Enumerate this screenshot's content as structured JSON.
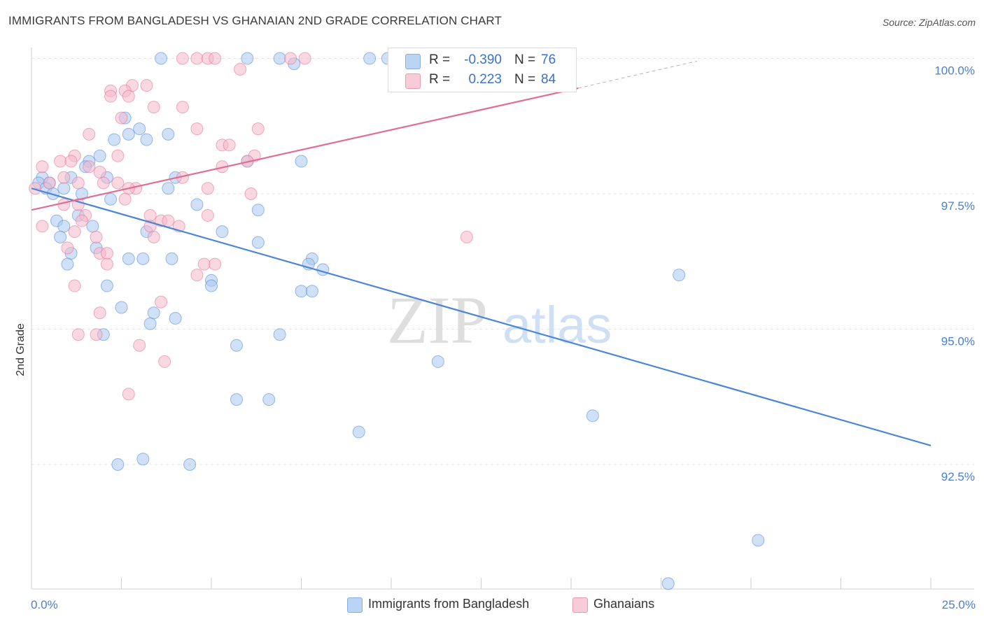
{
  "title": "IMMIGRANTS FROM BANGLADESH VS GHANAIAN 2ND GRADE CORRELATION CHART",
  "source": "Source: ZipAtlas.com",
  "watermark": {
    "zip": "ZIP",
    "atlas": "atlas"
  },
  "legend": {
    "rows": [
      {
        "r_label": "R =",
        "r_value": "-0.390",
        "n_label": "N =",
        "n_value": "76",
        "color": "#a9c8f0"
      },
      {
        "r_label": "R =",
        "r_value": "0.223",
        "n_label": "N =",
        "n_value": "84",
        "color": "#f5b8cb"
      }
    ]
  },
  "bottom_legend": [
    {
      "label": "Immigrants from Bangladesh",
      "color": "#a9c8f0"
    },
    {
      "label": "Ghanaians",
      "color": "#f5b8cb"
    }
  ],
  "chart_data": {
    "type": "scatter",
    "title": "IMMIGRANTS FROM BANGLADESH VS GHANAIAN 2ND GRADE CORRELATION CHART",
    "xlabel": "",
    "ylabel": "2nd Grade",
    "xlim": [
      0,
      25
    ],
    "ylim": [
      90.2,
      100.2
    ],
    "x_tick_labels": [
      "0.0%",
      "25.0%"
    ],
    "y_ticks": [
      92.5,
      95.0,
      97.5,
      100.0
    ],
    "y_tick_labels": [
      "92.5%",
      "95.0%",
      "97.5%",
      "100.0%"
    ],
    "grid": true,
    "legend_position": "top-center",
    "series": [
      {
        "name": "Immigrants from Bangladesh",
        "color": "#4a86d8",
        "fill": "#a9c8f0",
        "trend": {
          "x": [
            0.0,
            25.0
          ],
          "y": [
            97.6,
            92.85
          ]
        },
        "points": [
          [
            3.6,
            100.0
          ],
          [
            6.0,
            100.0
          ],
          [
            6.9,
            100.0
          ],
          [
            9.4,
            100.0
          ],
          [
            9.9,
            100.0
          ],
          [
            7.3,
            99.9
          ],
          [
            2.6,
            98.9
          ],
          [
            2.7,
            98.6
          ],
          [
            3.0,
            98.7
          ],
          [
            3.8,
            98.6
          ],
          [
            2.3,
            98.5
          ],
          [
            3.2,
            98.5
          ],
          [
            1.9,
            98.2
          ],
          [
            1.6,
            98.1
          ],
          [
            1.5,
            98.0
          ],
          [
            6.0,
            98.1
          ],
          [
            7.5,
            98.1
          ],
          [
            4.0,
            97.8
          ],
          [
            2.1,
            97.8
          ],
          [
            0.3,
            97.8
          ],
          [
            0.5,
            97.7
          ],
          [
            1.1,
            97.8
          ],
          [
            0.2,
            97.7
          ],
          [
            0.9,
            97.6
          ],
          [
            0.4,
            97.6
          ],
          [
            0.6,
            97.5
          ],
          [
            3.8,
            97.6
          ],
          [
            1.4,
            97.5
          ],
          [
            2.2,
            97.4
          ],
          [
            4.6,
            97.3
          ],
          [
            6.3,
            97.2
          ],
          [
            1.3,
            97.1
          ],
          [
            0.7,
            97.0
          ],
          [
            0.9,
            96.9
          ],
          [
            1.7,
            96.9
          ],
          [
            3.2,
            96.8
          ],
          [
            5.3,
            96.8
          ],
          [
            0.8,
            96.7
          ],
          [
            6.3,
            96.6
          ],
          [
            1.8,
            96.5
          ],
          [
            1.1,
            96.4
          ],
          [
            2.7,
            96.3
          ],
          [
            3.1,
            96.3
          ],
          [
            3.9,
            96.3
          ],
          [
            7.8,
            96.3
          ],
          [
            7.7,
            96.2
          ],
          [
            1.0,
            96.2
          ],
          [
            8.1,
            96.1
          ],
          [
            18.0,
            96.0
          ],
          [
            5.0,
            95.9
          ],
          [
            5.0,
            95.8
          ],
          [
            2.1,
            95.8
          ],
          [
            7.5,
            95.7
          ],
          [
            7.8,
            95.7
          ],
          [
            2.5,
            95.4
          ],
          [
            3.4,
            95.3
          ],
          [
            4.0,
            95.2
          ],
          [
            3.3,
            95.1
          ],
          [
            2.0,
            94.9
          ],
          [
            6.9,
            94.9
          ],
          [
            5.7,
            94.7
          ],
          [
            11.3,
            94.4
          ],
          [
            5.7,
            93.7
          ],
          [
            6.6,
            93.7
          ],
          [
            15.6,
            93.4
          ],
          [
            9.1,
            93.1
          ],
          [
            2.4,
            92.5
          ],
          [
            3.1,
            92.6
          ],
          [
            4.4,
            92.5
          ],
          [
            20.2,
            91.1
          ],
          [
            17.7,
            90.3
          ]
        ]
      },
      {
        "name": "Ghanaians",
        "color": "#e36d92",
        "fill": "#f5b8cb",
        "trend": {
          "x": [
            0.0,
            15.2
          ],
          "y": [
            97.2,
            99.45
          ]
        },
        "trend_dashed": {
          "x": [
            15.2,
            18.5
          ],
          "y": [
            99.45,
            99.95
          ]
        },
        "points": [
          [
            4.2,
            100.0
          ],
          [
            4.6,
            100.0
          ],
          [
            4.9,
            100.0
          ],
          [
            5.1,
            100.0
          ],
          [
            7.2,
            100.0
          ],
          [
            7.6,
            100.0
          ],
          [
            5.8,
            99.8
          ],
          [
            2.8,
            99.5
          ],
          [
            3.2,
            99.5
          ],
          [
            2.2,
            99.4
          ],
          [
            2.6,
            99.4
          ],
          [
            2.7,
            99.3
          ],
          [
            2.2,
            99.3
          ],
          [
            4.2,
            99.1
          ],
          [
            3.4,
            99.1
          ],
          [
            2.5,
            98.9
          ],
          [
            4.6,
            98.7
          ],
          [
            6.3,
            98.7
          ],
          [
            1.6,
            98.6
          ],
          [
            5.3,
            98.4
          ],
          [
            5.5,
            98.4
          ],
          [
            6.2,
            98.2
          ],
          [
            2.4,
            98.2
          ],
          [
            1.2,
            98.2
          ],
          [
            6.0,
            98.1
          ],
          [
            0.8,
            98.1
          ],
          [
            1.1,
            98.1
          ],
          [
            0.3,
            98.0
          ],
          [
            1.6,
            98.0
          ],
          [
            5.3,
            98.0
          ],
          [
            1.9,
            97.9
          ],
          [
            0.9,
            97.8
          ],
          [
            4.2,
            97.8
          ],
          [
            2.0,
            97.7
          ],
          [
            1.3,
            97.7
          ],
          [
            2.4,
            97.7
          ],
          [
            0.5,
            97.7
          ],
          [
            0.1,
            97.6
          ],
          [
            2.9,
            97.6
          ],
          [
            4.9,
            97.6
          ],
          [
            2.7,
            97.6
          ],
          [
            6.1,
            97.5
          ],
          [
            2.6,
            97.4
          ],
          [
            0.9,
            97.3
          ],
          [
            1.3,
            97.3
          ],
          [
            3.3,
            97.1
          ],
          [
            4.9,
            97.1
          ],
          [
            1.5,
            97.1
          ],
          [
            1.4,
            97.0
          ],
          [
            3.6,
            97.0
          ],
          [
            3.8,
            97.0
          ],
          [
            4.1,
            96.9
          ],
          [
            0.3,
            96.9
          ],
          [
            3.3,
            96.9
          ],
          [
            1.2,
            96.8
          ],
          [
            3.4,
            96.7
          ],
          [
            1.8,
            96.7
          ],
          [
            12.1,
            96.7
          ],
          [
            1.0,
            96.5
          ],
          [
            1.9,
            96.4
          ],
          [
            2.1,
            96.4
          ],
          [
            4.8,
            96.2
          ],
          [
            5.1,
            96.2
          ],
          [
            2.1,
            96.2
          ],
          [
            4.6,
            96.0
          ],
          [
            1.2,
            95.8
          ],
          [
            3.6,
            95.5
          ],
          [
            1.9,
            95.3
          ],
          [
            1.3,
            94.9
          ],
          [
            1.8,
            94.9
          ],
          [
            3.0,
            94.7
          ],
          [
            3.7,
            94.4
          ],
          [
            2.7,
            93.8
          ]
        ]
      }
    ]
  }
}
